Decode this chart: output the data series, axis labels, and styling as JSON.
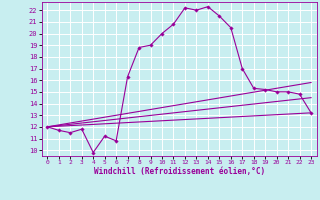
{
  "title": "",
  "xlabel": "Windchill (Refroidissement éolien,°C)",
  "bg_color": "#c8eef0",
  "line_color": "#990099",
  "grid_color": "#ffffff",
  "xlim": [
    -0.5,
    23.5
  ],
  "ylim": [
    9.5,
    22.7
  ],
  "xticks": [
    0,
    1,
    2,
    3,
    4,
    5,
    6,
    7,
    8,
    9,
    10,
    11,
    12,
    13,
    14,
    15,
    16,
    17,
    18,
    19,
    20,
    21,
    22,
    23
  ],
  "yticks": [
    10,
    11,
    12,
    13,
    14,
    15,
    16,
    17,
    18,
    19,
    20,
    21,
    22
  ],
  "series": [
    {
      "x": [
        0,
        1,
        2,
        3,
        4,
        5,
        6,
        7,
        8,
        9,
        10,
        11,
        12,
        13,
        14,
        15,
        16,
        17,
        18,
        19,
        20,
        21,
        22,
        23
      ],
      "y": [
        12.0,
        11.7,
        11.5,
        11.8,
        9.8,
        11.2,
        10.8,
        16.3,
        18.8,
        19.0,
        20.0,
        20.8,
        22.2,
        22.0,
        22.3,
        21.5,
        20.5,
        17.0,
        15.3,
        15.2,
        15.0,
        15.0,
        14.8,
        13.2
      ],
      "marker": "D",
      "has_marker": true
    },
    {
      "x": [
        0,
        23
      ],
      "y": [
        12.0,
        13.2
      ],
      "has_marker": false
    },
    {
      "x": [
        0,
        23
      ],
      "y": [
        12.0,
        14.5
      ],
      "has_marker": false
    },
    {
      "x": [
        0,
        23
      ],
      "y": [
        12.0,
        15.8
      ],
      "has_marker": false
    }
  ]
}
